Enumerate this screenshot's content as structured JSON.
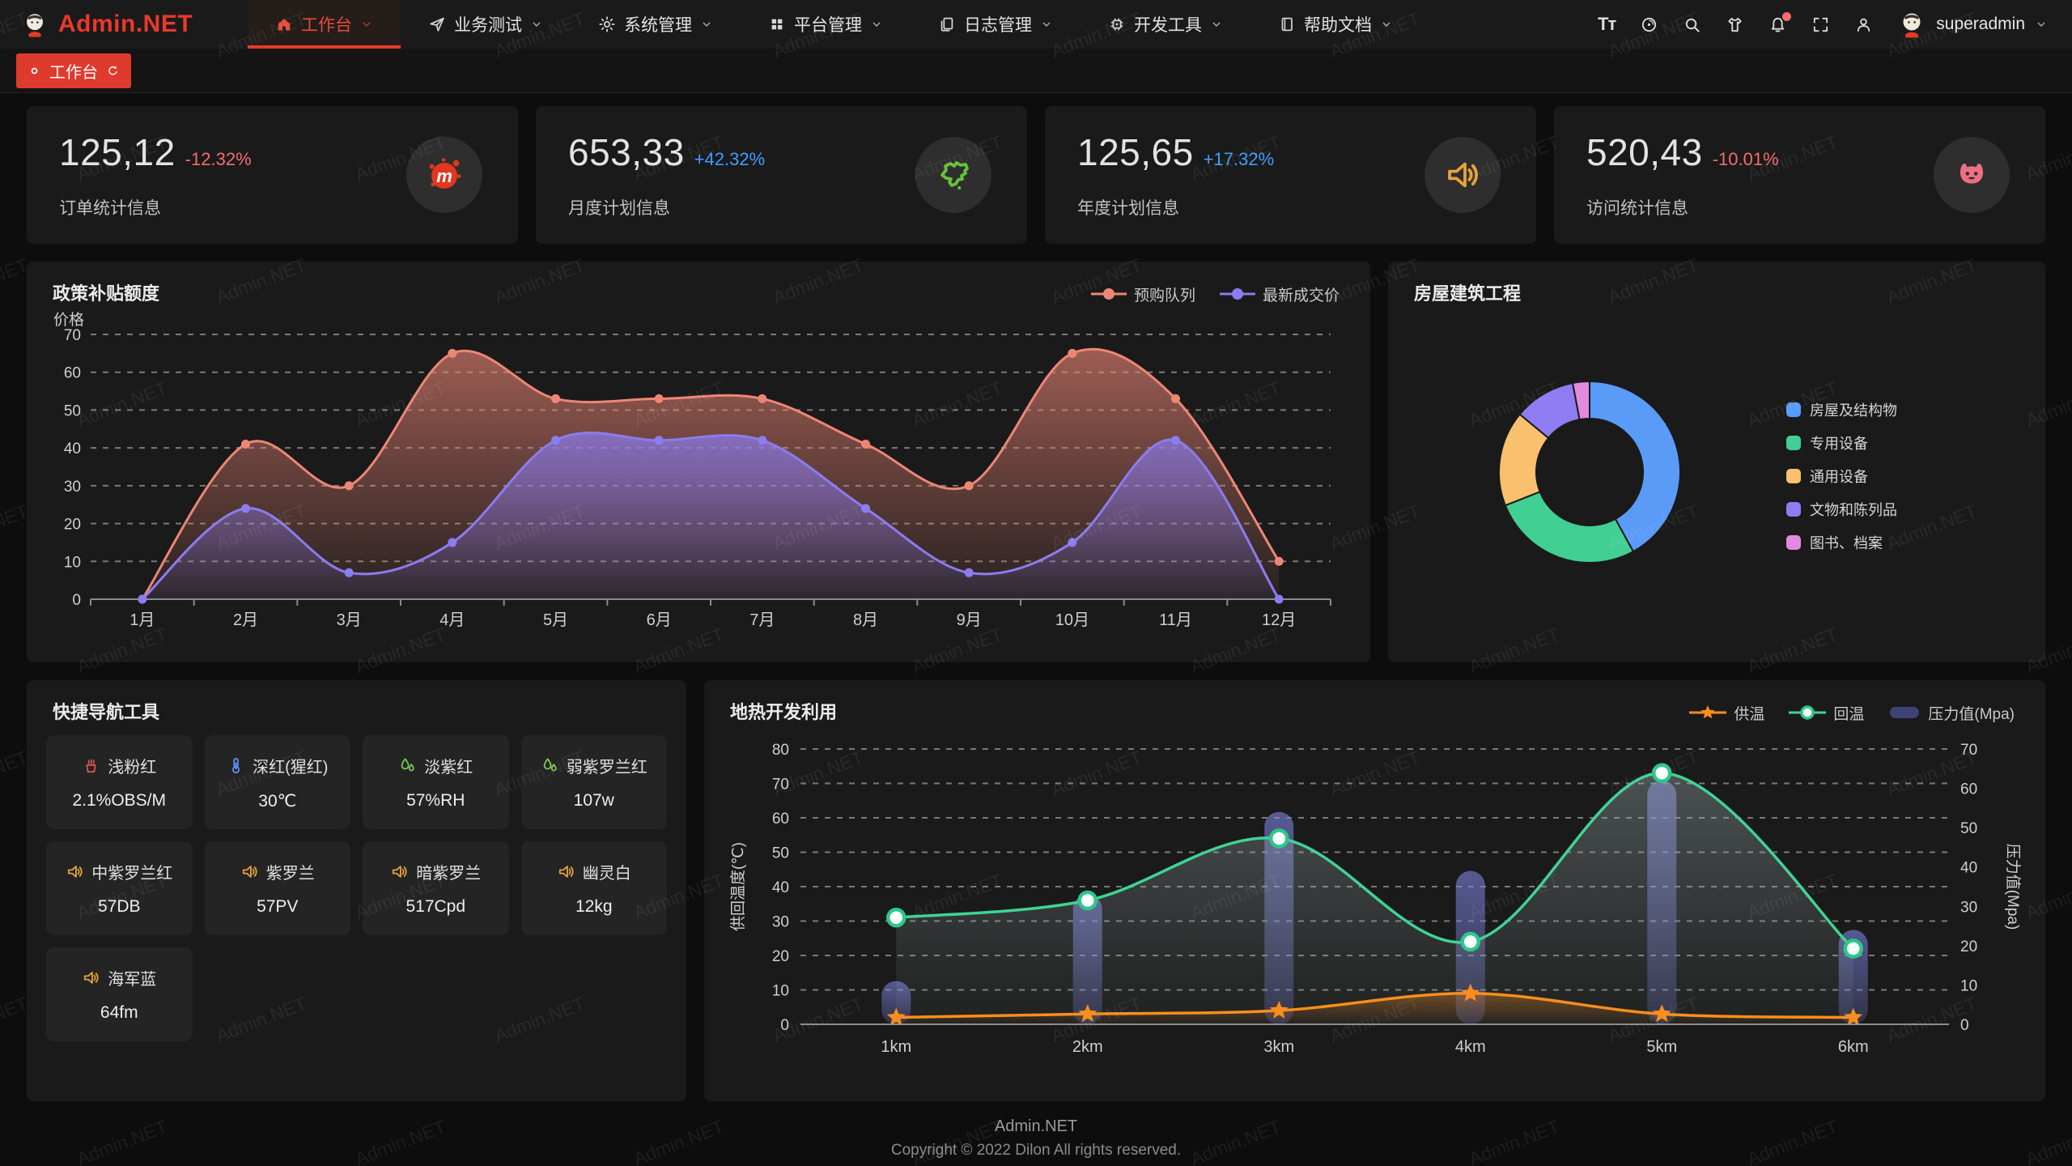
{
  "header": {
    "logo_text": "Admin.NET",
    "nav": [
      {
        "label": "工作台",
        "icon": "home",
        "active": true
      },
      {
        "label": "业务测试",
        "icon": "nav-arrow",
        "active": false
      },
      {
        "label": "系统管理",
        "icon": "gear",
        "active": false
      },
      {
        "label": "平台管理",
        "icon": "grid",
        "active": false
      },
      {
        "label": "日志管理",
        "icon": "doc",
        "active": false
      },
      {
        "label": "开发工具",
        "icon": "chip",
        "active": false
      },
      {
        "label": "帮助文档",
        "icon": "book",
        "active": false
      }
    ],
    "tools": [
      {
        "name": "font-size",
        "glyph": "Tт"
      },
      {
        "name": "language"
      },
      {
        "name": "search"
      },
      {
        "name": "theme"
      },
      {
        "name": "notification",
        "badge_color": "#f56c6c"
      },
      {
        "name": "fullscreen"
      },
      {
        "name": "user-center"
      }
    ],
    "user": "superadmin"
  },
  "tabbar": {
    "active_tab": "工作台"
  },
  "stat_cards": [
    {
      "value": "125,12",
      "delta": "-12.32%",
      "delta_color": "#f56c6c",
      "label": "订单统计信息",
      "icon": "meetup-splat",
      "icon_color": "#e0371f"
    },
    {
      "value": "653,33",
      "delta": "+42.32%",
      "delta_color": "#409eff",
      "label": "月度计划信息",
      "icon": "china-map",
      "icon_color": "#67c23a"
    },
    {
      "value": "125,65",
      "delta": "+17.32%",
      "delta_color": "#409eff",
      "label": "年度计划信息",
      "icon": "speaker",
      "icon_color": "#e6a23c"
    },
    {
      "value": "520,43",
      "delta": "-10.01%",
      "delta_color": "#f56c6c",
      "label": "访问统计信息",
      "icon": "cat",
      "icon_color": "#ee6f84"
    }
  ],
  "panels": {
    "line_title": "政策补贴额度",
    "donut_title": "房屋建筑工程",
    "quick_title": "快捷导航工具",
    "geo_title": "地热开发利用"
  },
  "quick_tiles": [
    {
      "icon": "chimney",
      "icon_color": "#d9534f",
      "name": "浅粉红",
      "value": "2.1%OBS/M"
    },
    {
      "icon": "thermometer",
      "icon_color": "#5b8ff9",
      "name": "深红(猩红)",
      "value": "30℃"
    },
    {
      "icon": "droplets",
      "icon_color": "#7ac756",
      "name": "淡紫红",
      "value": "57%RH"
    },
    {
      "icon": "droplets",
      "icon_color": "#7ac756",
      "name": "弱紫罗兰红",
      "value": "107w"
    },
    {
      "icon": "speaker",
      "icon_color": "#e6a23c",
      "name": "中紫罗兰红",
      "value": "57DB"
    },
    {
      "icon": "speaker",
      "icon_color": "#e6a23c",
      "name": "紫罗兰",
      "value": "57PV"
    },
    {
      "icon": "speaker",
      "icon_color": "#e6a23c",
      "name": "暗紫罗兰",
      "value": "517Cpd"
    },
    {
      "icon": "speaker",
      "icon_color": "#e6a23c",
      "name": "幽灵白",
      "value": "12kg"
    },
    {
      "icon": "speaker",
      "icon_color": "#e6a23c",
      "name": "海军蓝",
      "value": "64fm"
    }
  ],
  "chart_data": [
    {
      "id": "subsidy",
      "type": "line",
      "title": "政策补贴额度",
      "ylabel": "价格",
      "ylim": [
        0,
        70
      ],
      "ytick_step": 10,
      "grid": "dashed",
      "legend_position": "top-right",
      "categories": [
        "1月",
        "2月",
        "3月",
        "4月",
        "5月",
        "6月",
        "7月",
        "8月",
        "9月",
        "10月",
        "11月",
        "12月"
      ],
      "series": [
        {
          "name": "预购队列",
          "color": "#ee8676",
          "area": true,
          "smooth": true,
          "values": [
            0,
            41,
            30,
            65,
            53,
            53,
            53,
            41,
            30,
            65,
            53,
            10
          ]
        },
        {
          "name": "最新成交价",
          "color": "#8b7cf0",
          "area": true,
          "smooth": true,
          "values": [
            0,
            24,
            7,
            15,
            42,
            42,
            42,
            24,
            7,
            15,
            42,
            0
          ]
        }
      ]
    },
    {
      "id": "building",
      "type": "pie",
      "title": "房屋建筑工程",
      "legend_position": "right",
      "donut": true,
      "slices": [
        {
          "name": "房屋及结构物",
          "value": 42,
          "color": "#5b9bf8"
        },
        {
          "name": "专用设备",
          "value": 27,
          "color": "#41cf94"
        },
        {
          "name": "通用设备",
          "value": 17,
          "color": "#f9c06e"
        },
        {
          "name": "文物和陈列品",
          "value": 11,
          "color": "#8f7cf3"
        },
        {
          "name": "图书、档案",
          "value": 3,
          "color": "#e28adf"
        }
      ]
    },
    {
      "id": "geothermal",
      "type": "line",
      "title": "地热开发利用",
      "ylabel_left": "供回温度(℃)",
      "ylabel_right": "压力值(Mpa)",
      "ylim_left": [
        0,
        80
      ],
      "ylim_right": [
        0,
        70
      ],
      "ytick_step": 10,
      "grid": "dashed",
      "legend_position": "top-right",
      "categories": [
        "1km",
        "2km",
        "3km",
        "4km",
        "5km",
        "6km"
      ],
      "series": [
        {
          "name": "供温",
          "type": "line",
          "color": "#f98e1d",
          "marker": "star",
          "axis": "left",
          "values": [
            2,
            3,
            4,
            9,
            3,
            2
          ]
        },
        {
          "name": "回温",
          "type": "line",
          "color": "#3fd495",
          "marker": "circle",
          "axis": "left",
          "values": [
            31,
            36,
            54,
            24,
            73,
            22
          ]
        },
        {
          "name": "压力值(Mpa)",
          "type": "bar",
          "color": "#7c82dc",
          "axis": "right",
          "values": [
            11,
            33,
            54,
            39,
            62,
            24
          ]
        }
      ]
    }
  ],
  "footer": {
    "line1": "Admin.NET",
    "line2": "Copyright © 2022 Dilon All rights reserved."
  },
  "watermark": {
    "text": "Admin.NET"
  }
}
